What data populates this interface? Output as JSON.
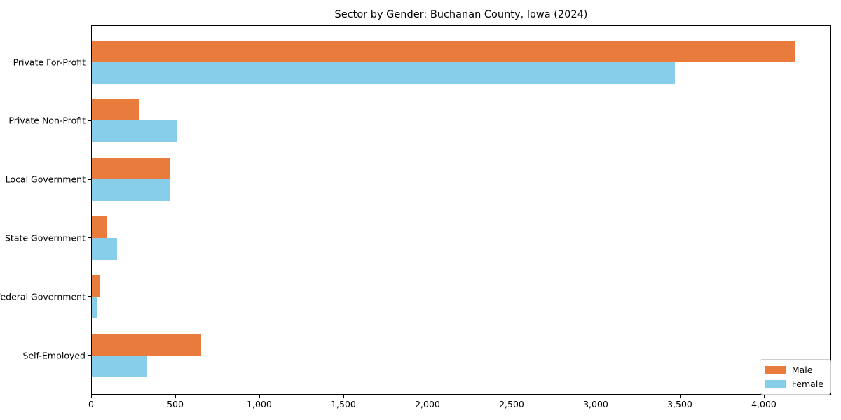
{
  "chart_data": {
    "type": "bar",
    "orientation": "horizontal",
    "title": "Sector by Gender: Buchanan County, Iowa (2024)",
    "categories": [
      "Private For-Profit",
      "Private Non-Profit",
      "Local Government",
      "State Government",
      "Federal Government",
      "Self-Employed"
    ],
    "series": [
      {
        "name": "Male",
        "color": "#e97c3c",
        "values": [
          4180,
          278,
          465,
          86,
          50,
          650
        ]
      },
      {
        "name": "Female",
        "color": "#87ceeb",
        "values": [
          3465,
          505,
          462,
          150,
          33,
          330
        ]
      }
    ],
    "xlabel": "",
    "ylabel": "",
    "xlim": [
      0,
      4400
    ],
    "xticks": [
      0,
      500,
      1000,
      1500,
      2000,
      2500,
      3000,
      3500,
      4000
    ],
    "xtick_labels": [
      "0",
      "500",
      "1,000",
      "1,500",
      "2,000",
      "2,500",
      "3,000",
      "3,500",
      "4,000"
    ],
    "grid": false,
    "legend": {
      "position": "lower right",
      "items": [
        {
          "label": "Male",
          "color": "#e97c3c"
        },
        {
          "label": "Female",
          "color": "#87ceeb"
        }
      ]
    }
  }
}
